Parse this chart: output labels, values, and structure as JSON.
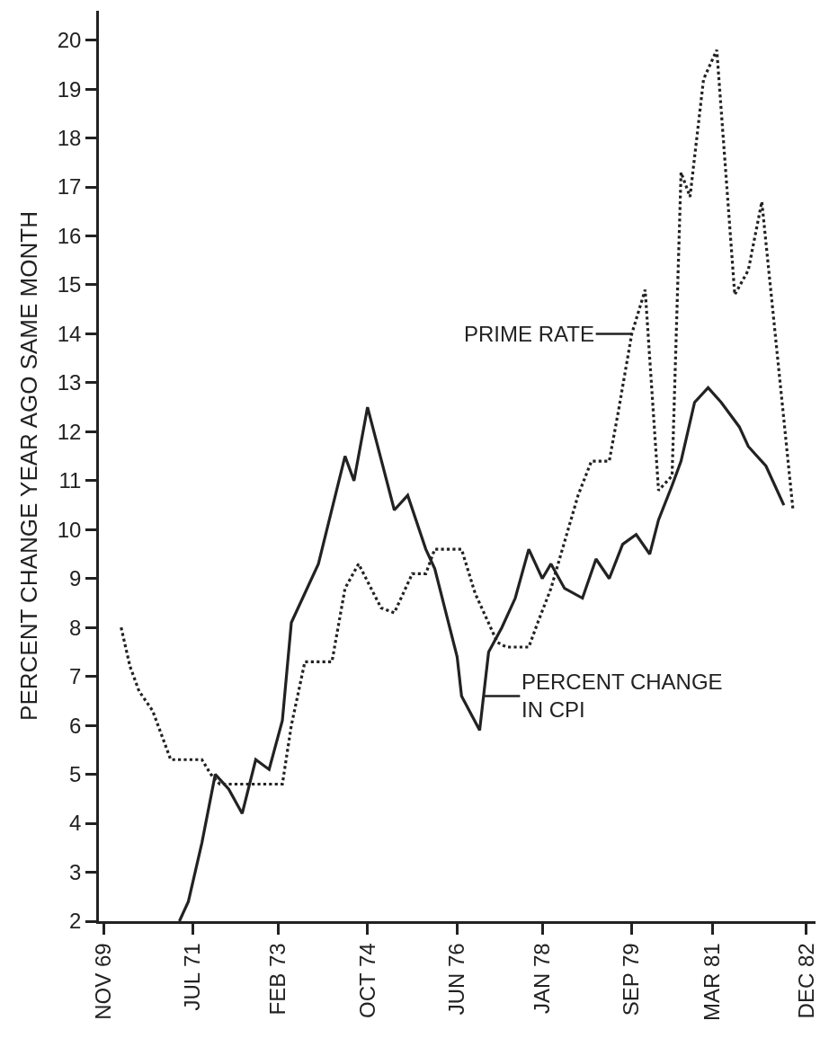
{
  "chart_data": {
    "type": "line",
    "ylabel": "PERCENT CHANGE YEAR AGO SAME MONTH",
    "series": [
      {
        "color": "#222222",
        "line_style": "dotted",
        "x": [
          "1970-03",
          "1970-05",
          "1970-07",
          "1970-10",
          "1971-02",
          "1971-09",
          "1971-11",
          "1972-01",
          "1973-03",
          "1973-05",
          "1973-08",
          "1974-02",
          "1974-05",
          "1974-08",
          "1975-01",
          "1975-04",
          "1975-08",
          "1975-11",
          "1976-01",
          "1976-07",
          "1976-10",
          "1977-03",
          "1977-05",
          "1977-10",
          "1977-12",
          "1978-03",
          "1978-09",
          "1978-12",
          "1979-04",
          "1979-06",
          "1979-09",
          "1979-12",
          "1980-03",
          "1980-06",
          "1980-08",
          "1980-10",
          "1981-01",
          "1981-04",
          "1981-08",
          "1981-11",
          "1982-02",
          "1982-09"
        ],
        "values": [
          8.0,
          7.2,
          6.7,
          6.3,
          5.3,
          5.3,
          5.0,
          4.8,
          4.8,
          6.0,
          7.3,
          7.3,
          8.8,
          9.3,
          8.4,
          8.3,
          9.1,
          9.1,
          9.6,
          9.6,
          8.7,
          7.7,
          7.6,
          7.6,
          8.1,
          8.8,
          10.7,
          11.4,
          11.4,
          12.4,
          14.0,
          14.9,
          10.8,
          11.1,
          17.3,
          16.8,
          19.2,
          19.8,
          14.8,
          15.3,
          16.7,
          10.4
        ]
      },
      {
        "color": "#222222",
        "line_style": "solid",
        "x": [
          "1971-04",
          "1971-06",
          "1971-09",
          "1971-12",
          "1972-03",
          "1972-06",
          "1972-09",
          "1972-12",
          "1973-03",
          "1973-05",
          "1973-11",
          "1974-05",
          "1974-07",
          "1974-10",
          "1975-04",
          "1975-07",
          "1975-11",
          "1976-01",
          "1976-06",
          "1976-07",
          "1976-11",
          "1977-01",
          "1977-04",
          "1977-07",
          "1977-10",
          "1978-01",
          "1978-03",
          "1978-06",
          "1978-10",
          "1979-01",
          "1979-04",
          "1979-07",
          "1979-10",
          "1980-01",
          "1980-03",
          "1980-06",
          "1980-08",
          "1980-11",
          "1981-02",
          "1981-05",
          "1981-09",
          "1981-11",
          "1982-03",
          "1982-07"
        ],
        "values": [
          2.0,
          2.4,
          3.6,
          5.0,
          4.7,
          4.2,
          5.3,
          5.1,
          6.1,
          8.1,
          9.3,
          11.5,
          11.0,
          12.5,
          10.4,
          10.7,
          9.6,
          9.2,
          7.4,
          6.6,
          5.9,
          7.5,
          8.0,
          8.6,
          9.6,
          9.0,
          9.3,
          8.8,
          8.6,
          9.4,
          9.0,
          9.7,
          9.9,
          9.5,
          10.2,
          10.9,
          11.4,
          12.6,
          12.9,
          12.6,
          12.1,
          11.7,
          11.3,
          10.5
        ]
      }
    ],
    "xlim": [
      "1969-10",
      "1983-02"
    ],
    "xticks": [
      {
        "value": "1969-11",
        "label": "NOV 69"
      },
      {
        "value": "1971-07",
        "label": "JUL 71"
      },
      {
        "value": "1973-02",
        "label": "FEB 73"
      },
      {
        "value": "1974-10",
        "label": "OCT 74"
      },
      {
        "value": "1976-06",
        "label": "JUN 76"
      },
      {
        "value": "1978-01",
        "label": "JAN 78"
      },
      {
        "value": "1979-09",
        "label": "SEP 79"
      },
      {
        "value": "1981-03",
        "label": "MAR 81"
      },
      {
        "value": "1982-12",
        "label": "DEC 82"
      }
    ],
    "ylim": [
      2,
      20.6
    ],
    "yticks": [
      2,
      3,
      4,
      5,
      6,
      7,
      8,
      9,
      10,
      11,
      12,
      13,
      14,
      15,
      16,
      17,
      18,
      19,
      20
    ],
    "annotations": [
      {
        "text": "PRIME RATE",
        "x": "1979-09",
        "y": 14.0
      },
      {
        "text": "PERCENT CHANGE\nIN CPI",
        "x": "1976-12",
        "y": 6.6
      }
    ]
  }
}
